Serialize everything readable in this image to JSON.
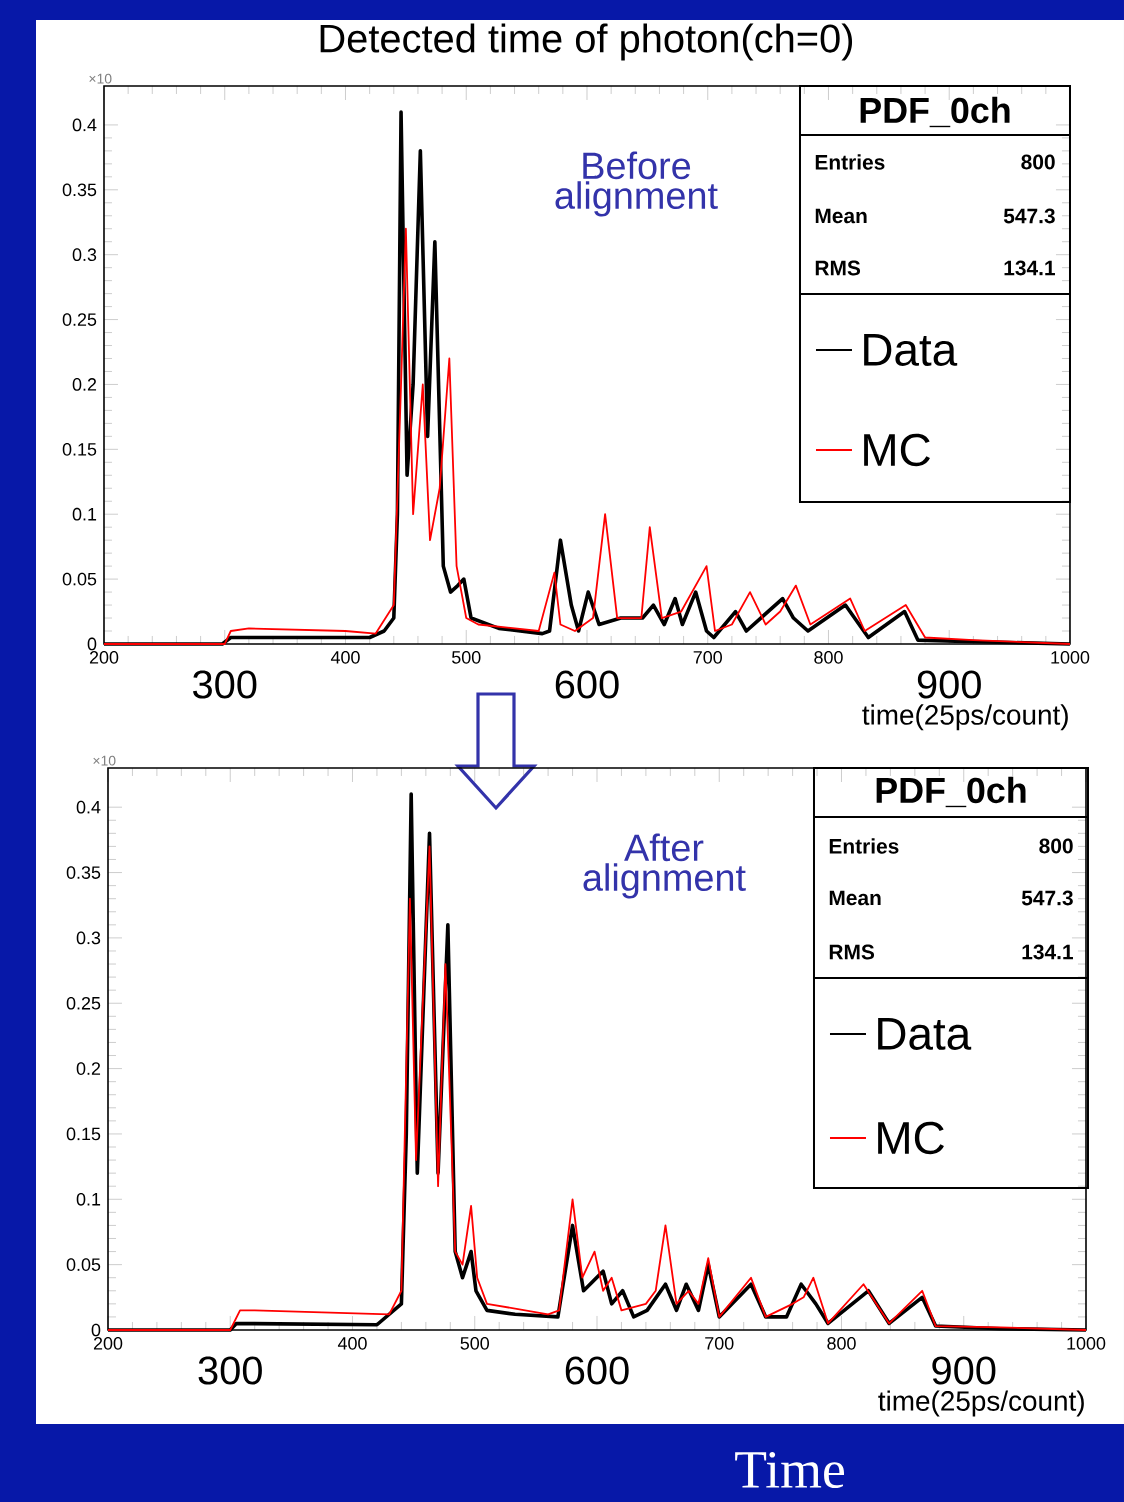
{
  "chart_data": [
    {
      "type": "line",
      "title": "Detected time of photon(ch=0)",
      "xlabel": "time(25ps/count)",
      "xlim": [
        200,
        1000
      ],
      "ylim": [
        0,
        0.43
      ],
      "xticks": [
        200,
        {
          "value": 300,
          "label": null
        },
        400,
        500,
        {
          "value": 600,
          "label": null
        },
        700,
        800,
        {
          "value": 900,
          "label": null
        },
        1000
      ],
      "yticks": [
        0,
        0.05,
        0.1,
        0.15,
        0.2,
        0.25,
        0.3,
        0.35,
        0.4
      ],
      "legend": "right",
      "marker": "none",
      "line_style": "solid",
      "grid": false,
      "annotations": [
        "Before alignment",
        "×10",
        "PDF_0ch",
        "Entries",
        "800",
        "Mean",
        "547.3",
        "RMS",
        "134.1",
        "300",
        "600",
        "900"
      ],
      "series": [
        {
          "name": "Data",
          "color": "#000000",
          "x": [
            200,
            298,
            305,
            420,
            432,
            440,
            443,
            446,
            451,
            456,
            462,
            468,
            474,
            481,
            487,
            493,
            498,
            504,
            527,
            563,
            569,
            578,
            587,
            593,
            601,
            610,
            628,
            646,
            655,
            664,
            673,
            679,
            690,
            699,
            705,
            723,
            732,
            762,
            771,
            783,
            814,
            833,
            863,
            874,
            913,
            1000
          ],
          "values": [
            0,
            0,
            0.005,
            0.005,
            0.01,
            0.02,
            0.1,
            0.41,
            0.13,
            0.2,
            0.38,
            0.16,
            0.31,
            0.06,
            0.04,
            0.045,
            0.05,
            0.02,
            0.012,
            0.008,
            0.01,
            0.08,
            0.03,
            0.01,
            0.04,
            0.015,
            0.02,
            0.02,
            0.03,
            0.015,
            0.035,
            0.015,
            0.04,
            0.01,
            0.005,
            0.025,
            0.01,
            0.035,
            0.02,
            0.01,
            0.03,
            0.005,
            0.025,
            0.003,
            0.002,
            0
          ]
        },
        {
          "name": "MC",
          "color": "#ff0000",
          "x": [
            200,
            300,
            305,
            320,
            400,
            425,
            440,
            446,
            450,
            456,
            464,
            470,
            478,
            486,
            492,
            500,
            510,
            560,
            573,
            578,
            590,
            605,
            615,
            625,
            645,
            652,
            662,
            678,
            699,
            706,
            720,
            735,
            748,
            760,
            773,
            785,
            818,
            830,
            864,
            880,
            920,
            1000
          ],
          "values": [
            0,
            0,
            0.01,
            0.012,
            0.01,
            0.008,
            0.03,
            0.2,
            0.32,
            0.1,
            0.2,
            0.08,
            0.12,
            0.22,
            0.06,
            0.02,
            0.015,
            0.01,
            0.055,
            0.015,
            0.01,
            0.02,
            0.1,
            0.02,
            0.02,
            0.09,
            0.02,
            0.025,
            0.06,
            0.01,
            0.015,
            0.04,
            0.015,
            0.025,
            0.045,
            0.015,
            0.035,
            0.01,
            0.03,
            0.005,
            0.003,
            0
          ]
        }
      ]
    },
    {
      "type": "line",
      "xlabel": "time(25ps/count)",
      "xlim": [
        200,
        1000
      ],
      "ylim": [
        0,
        0.43
      ],
      "xticks": [
        200,
        {
          "value": 300,
          "label": null
        },
        400,
        500,
        {
          "value": 600,
          "label": null
        },
        700,
        800,
        {
          "value": 900,
          "label": null
        },
        1000
      ],
      "yticks": [
        0,
        0.05,
        0.1,
        0.15,
        0.2,
        0.25,
        0.3,
        0.35,
        0.4
      ],
      "legend": "right",
      "marker": "none",
      "line_style": "solid",
      "grid": false,
      "annotations": [
        "After alignment",
        "×10",
        "PDF_0ch",
        "Entries",
        "800",
        "Mean",
        "547.3",
        "RMS",
        "134.1",
        "300",
        "600",
        "900",
        "Time"
      ],
      "series": [
        {
          "name": "Data",
          "color": "#000000",
          "x": [
            200,
            300,
            305,
            420,
            440,
            444,
            448,
            453,
            463,
            470,
            478,
            484,
            490,
            497,
            501,
            510,
            533,
            568,
            580,
            589,
            605,
            612,
            621,
            630,
            641,
            656,
            665,
            673,
            683,
            691,
            700,
            726,
            738,
            755,
            767,
            779,
            789,
            822,
            839,
            866,
            877,
            930,
            1000
          ],
          "values": [
            0,
            0,
            0.005,
            0.004,
            0.02,
            0.15,
            0.41,
            0.12,
            0.38,
            0.12,
            0.31,
            0.06,
            0.04,
            0.06,
            0.03,
            0.015,
            0.012,
            0.01,
            0.08,
            0.03,
            0.045,
            0.02,
            0.03,
            0.01,
            0.015,
            0.035,
            0.015,
            0.035,
            0.015,
            0.05,
            0.01,
            0.035,
            0.01,
            0.01,
            0.035,
            0.02,
            0.005,
            0.03,
            0.005,
            0.025,
            0.003,
            0.001,
            0
          ]
        },
        {
          "name": "MC",
          "color": "#ff0000",
          "x": [
            200,
            300,
            308,
            320,
            430,
            440,
            447,
            452,
            463,
            470,
            476,
            484,
            490,
            497,
            502,
            510,
            560,
            569,
            580,
            588,
            598,
            605,
            612,
            620,
            640,
            648,
            656,
            665,
            675,
            683,
            691,
            700,
            726,
            738,
            760,
            769,
            777,
            789,
            818,
            839,
            866,
            877,
            930,
            1000
          ],
          "values": [
            0,
            0,
            0.015,
            0.015,
            0.012,
            0.03,
            0.33,
            0.13,
            0.37,
            0.11,
            0.28,
            0.06,
            0.05,
            0.095,
            0.04,
            0.02,
            0.012,
            0.015,
            0.1,
            0.04,
            0.06,
            0.03,
            0.04,
            0.015,
            0.02,
            0.03,
            0.08,
            0.02,
            0.03,
            0.02,
            0.055,
            0.01,
            0.04,
            0.01,
            0.02,
            0.025,
            0.04,
            0.005,
            0.035,
            0.005,
            0.03,
            0.003,
            0.002,
            0
          ]
        }
      ]
    }
  ]
}
